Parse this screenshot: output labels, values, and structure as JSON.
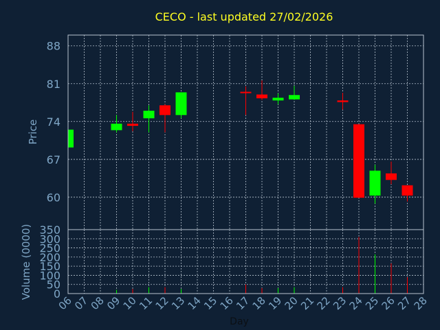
{
  "chart_data": {
    "type": "candlestick",
    "title": "CECO - last updated 27/02/2026",
    "xlabel": "Day",
    "colors": {
      "up": "#00ff00",
      "down": "#ff0000",
      "background": "#0f2034",
      "text": "#7fa6c6",
      "title": "#ffff22"
    },
    "x_ticks": [
      "06",
      "07",
      "08",
      "09",
      "10",
      "11",
      "12",
      "13",
      "14",
      "15",
      "16",
      "17",
      "18",
      "19",
      "20",
      "21",
      "22",
      "23",
      "24",
      "25",
      "26",
      "27",
      "28"
    ],
    "price_panel": {
      "ylabel": "Price",
      "ylim": [
        54,
        90
      ],
      "y_ticks": [
        60,
        67,
        74,
        81,
        88
      ],
      "grid": true
    },
    "volume_panel": {
      "ylabel": "Volume (0000)",
      "ylim": [
        0,
        350
      ],
      "y_ticks": [
        0,
        50,
        100,
        150,
        200,
        250,
        300,
        350
      ],
      "grid": true
    },
    "candles": [
      {
        "day": 6,
        "open": 69.2,
        "close": 72.5,
        "high": 72.5,
        "low": 69.2,
        "volume": 2
      },
      {
        "day": 9,
        "open": 72.4,
        "close": 73.6,
        "high": 75.2,
        "low": 72.0,
        "volume": 20
      },
      {
        "day": 10,
        "open": 73.6,
        "close": 73.2,
        "high": 75.8,
        "low": 72.2,
        "volume": 25
      },
      {
        "day": 11,
        "open": 74.6,
        "close": 76.0,
        "high": 77.0,
        "low": 72.0,
        "volume": 35
      },
      {
        "day": 12,
        "open": 77.0,
        "close": 75.2,
        "high": 77.2,
        "low": 72.0,
        "volume": 35
      },
      {
        "day": 13,
        "open": 75.2,
        "close": 79.4,
        "high": 79.4,
        "low": 74.6,
        "volume": 25
      },
      {
        "day": 17,
        "open": 79.5,
        "close": 79.3,
        "high": 80.5,
        "low": 75.2,
        "volume": 50
      },
      {
        "day": 18,
        "open": 79.0,
        "close": 78.3,
        "high": 81.6,
        "low": 78.0,
        "volume": 30
      },
      {
        "day": 19,
        "open": 77.9,
        "close": 78.4,
        "high": 79.2,
        "low": 77.2,
        "volume": 30
      },
      {
        "day": 20,
        "open": 78.1,
        "close": 78.9,
        "high": 80.6,
        "low": 78.0,
        "volume": 35
      },
      {
        "day": 23,
        "open": 77.9,
        "close": 77.6,
        "high": 79.3,
        "low": 76.2,
        "volume": 35
      },
      {
        "day": 24,
        "open": 73.5,
        "close": 59.9,
        "high": 73.5,
        "low": 59.9,
        "volume": 310
      },
      {
        "day": 25,
        "open": 60.3,
        "close": 64.9,
        "high": 66.0,
        "low": 58.8,
        "volume": 215
      },
      {
        "day": 26,
        "open": 64.4,
        "close": 63.2,
        "high": 66.6,
        "low": 62.4,
        "volume": 165
      },
      {
        "day": 27,
        "open": 62.2,
        "close": 60.3,
        "high": 62.2,
        "low": 59.2,
        "volume": 90
      }
    ]
  }
}
